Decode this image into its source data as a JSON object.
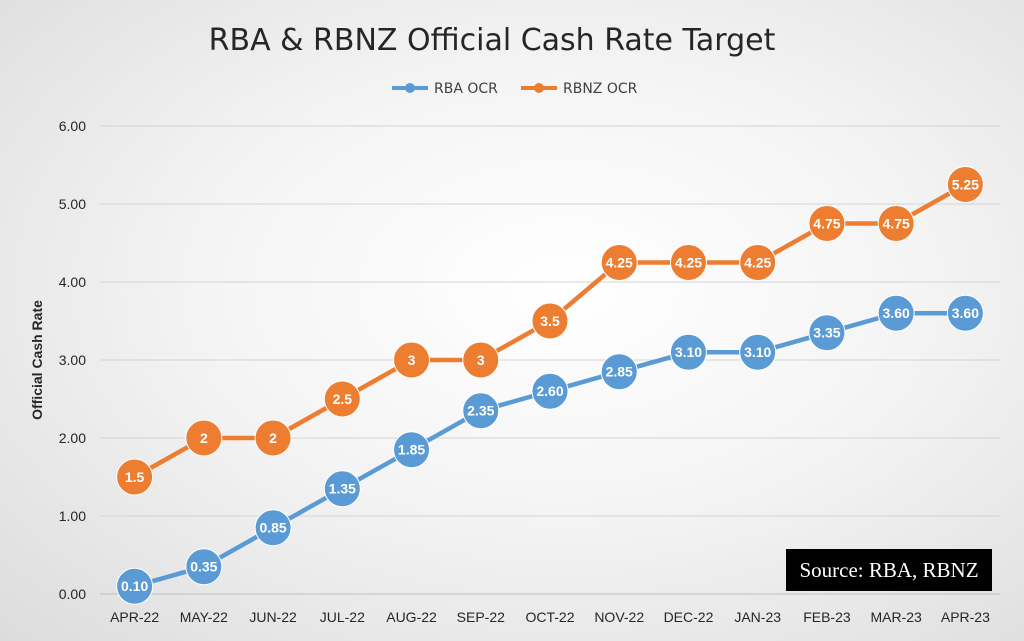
{
  "chart_data": {
    "type": "line",
    "title": "RBA & RBNZ Official Cash Rate Target",
    "xlabel": "",
    "ylabel": "Official Cash Rate",
    "categories": [
      "APR-22",
      "MAY-22",
      "JUN-22",
      "JUL-22",
      "AUG-22",
      "SEP-22",
      "OCT-22",
      "NOV-22",
      "DEC-22",
      "JAN-23",
      "FEB-23",
      "MAR-23",
      "APR-23"
    ],
    "ylim": [
      0,
      6
    ],
    "yticks": [
      "0.00",
      "1.00",
      "2.00",
      "3.00",
      "4.00",
      "5.00",
      "6.00"
    ],
    "grid": true,
    "legend_position": "top-center",
    "series": [
      {
        "name": "RBA OCR",
        "color": "#5B9BD5",
        "values": [
          0.1,
          0.35,
          0.85,
          1.35,
          1.85,
          2.35,
          2.6,
          2.85,
          3.1,
          3.1,
          3.35,
          3.6,
          3.6
        ],
        "labels": [
          "0.10",
          "0.35",
          "0.85",
          "1.35",
          "1.85",
          "2.35",
          "2.60",
          "2.85",
          "3.10",
          "3.10",
          "3.35",
          "3.60",
          "3.60"
        ]
      },
      {
        "name": "RBNZ OCR",
        "color": "#ED7D31",
        "values": [
          1.5,
          2,
          2,
          2.5,
          3,
          3,
          3.5,
          4.25,
          4.25,
          4.25,
          4.75,
          4.75,
          5.25
        ],
        "labels": [
          "1.5",
          "2",
          "2",
          "2.5",
          "3",
          "3",
          "3.5",
          "4.25",
          "4.25",
          "4.25",
          "4.75",
          "4.75",
          "5.25"
        ]
      }
    ],
    "annotation": "Source: RBA, RBNZ"
  }
}
